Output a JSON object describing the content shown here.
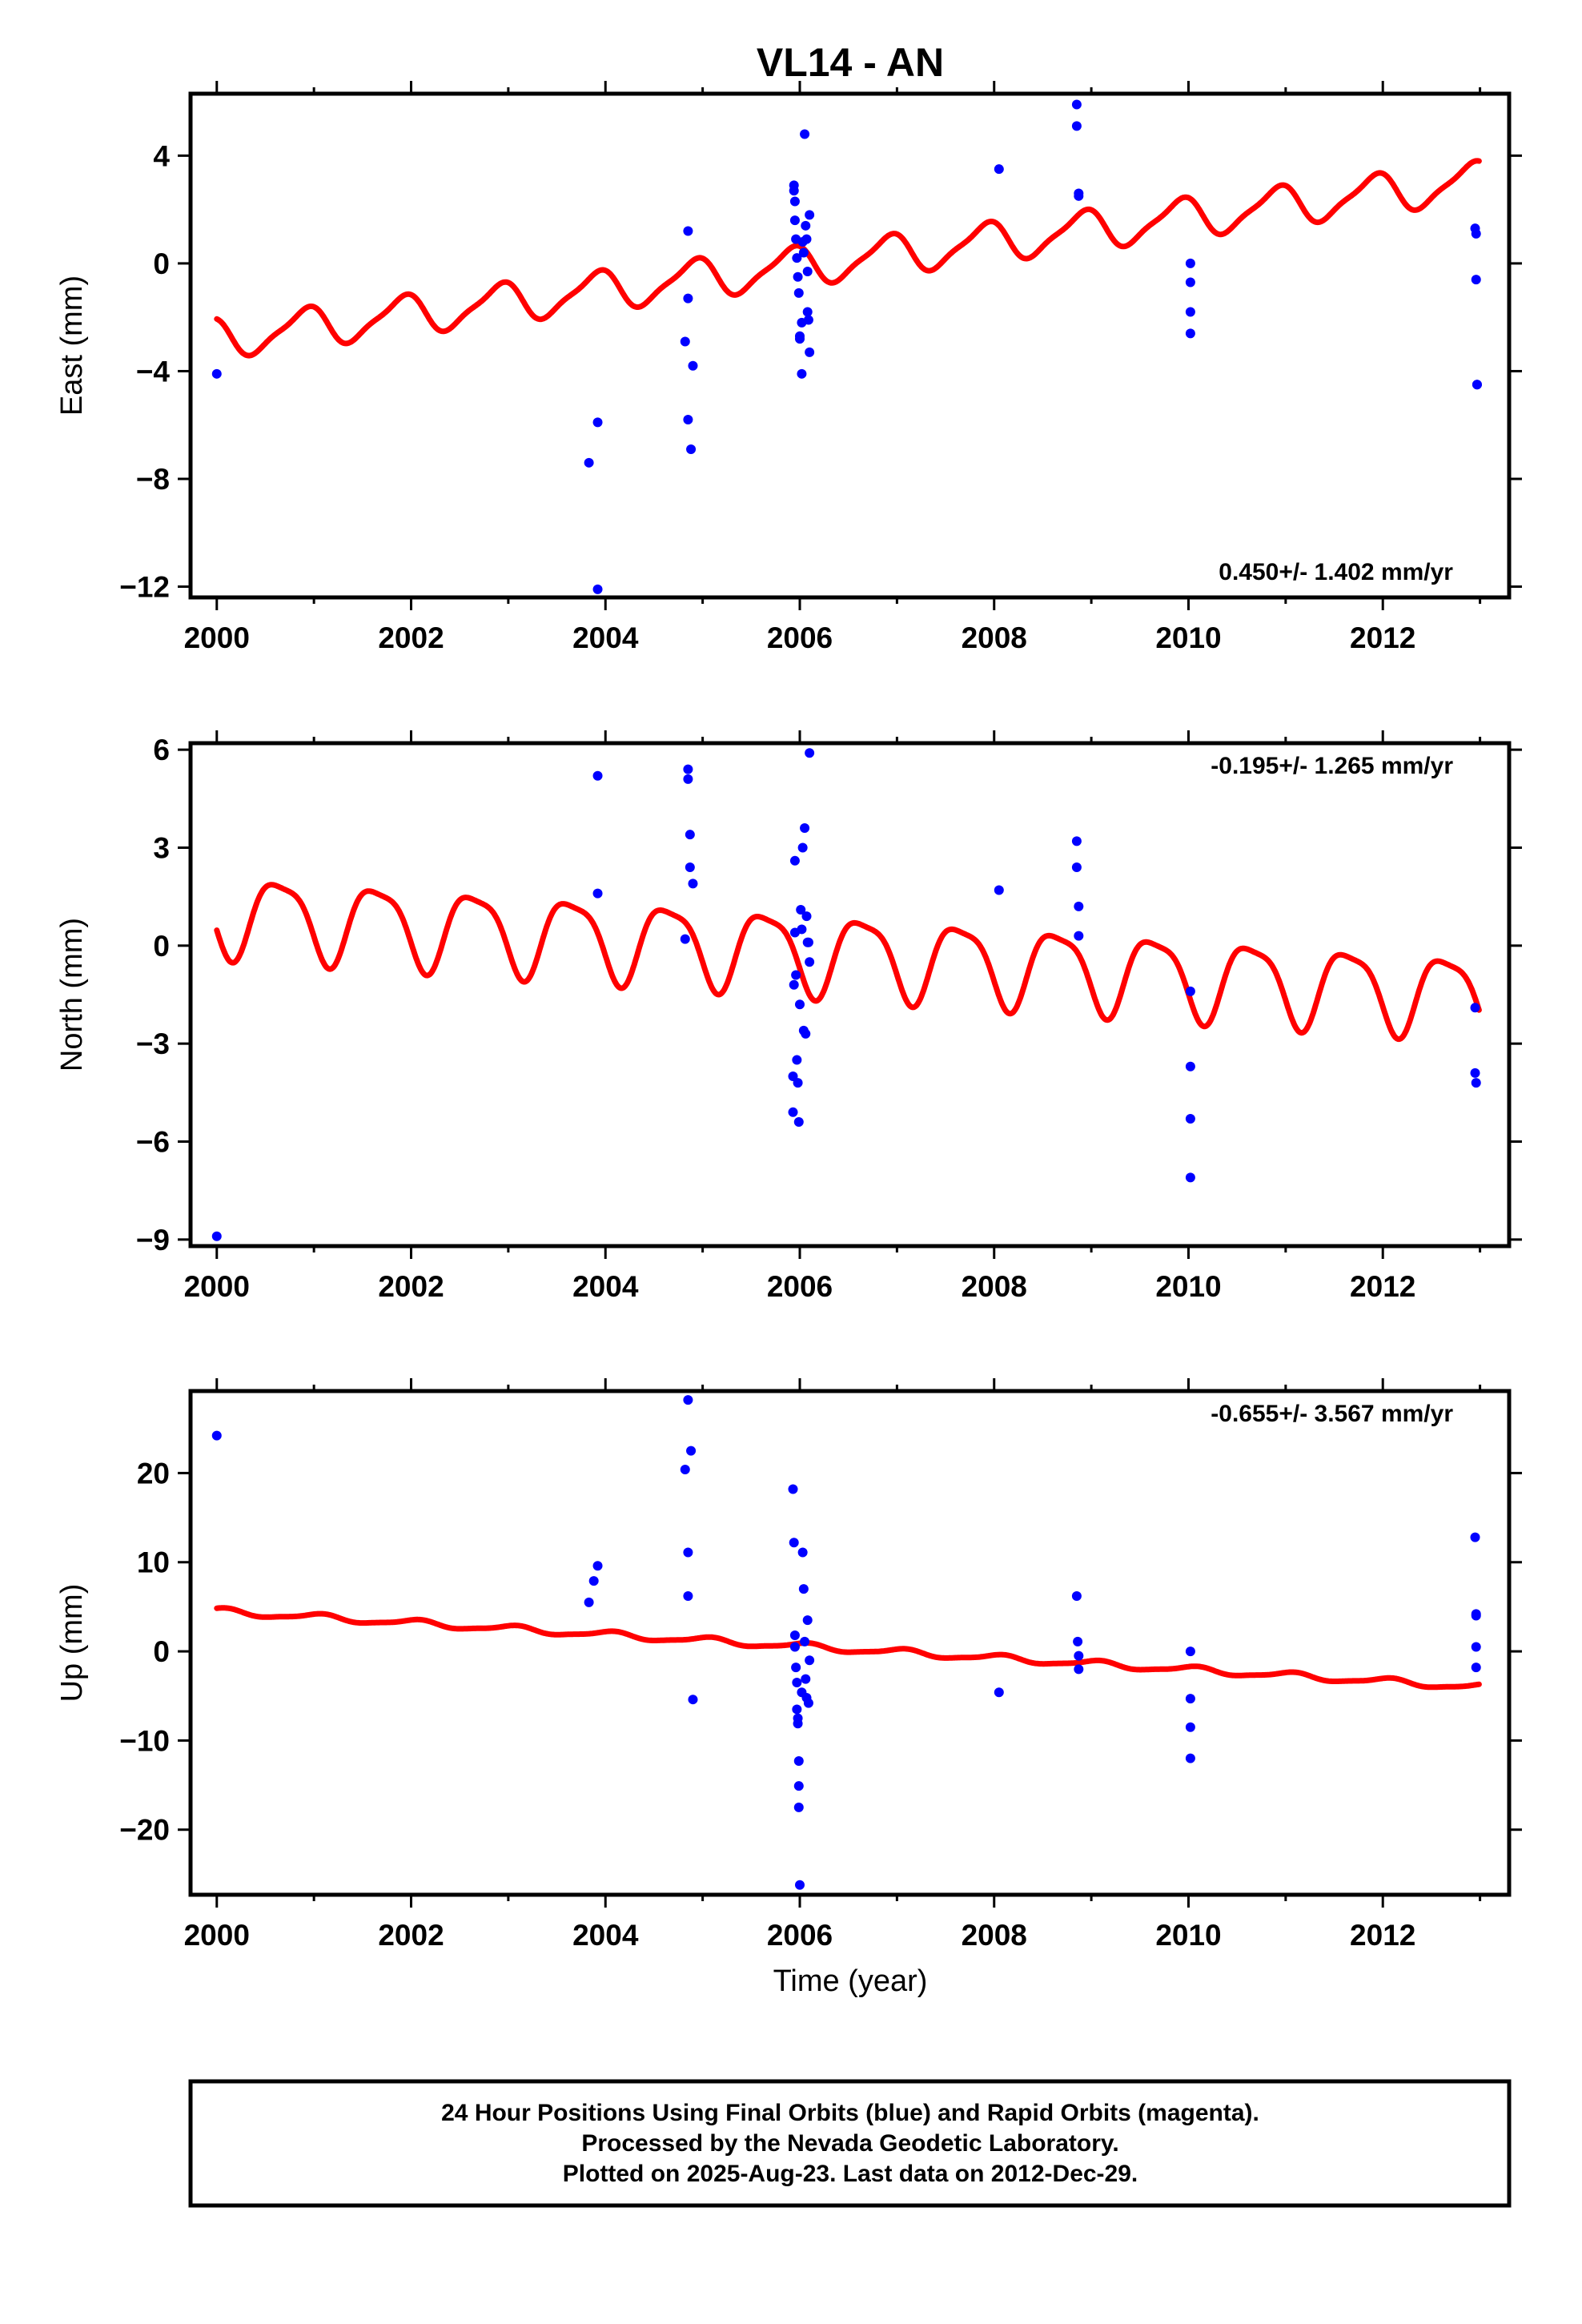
{
  "colors": {
    "final_points": "#0000ff",
    "model_fit": "#ff0000",
    "frame": "#000000"
  },
  "chart_data": {
    "type": "scatter",
    "title": "VL14 - AN",
    "xlabel": "Time (year)",
    "x_ticks": [
      "2000",
      "2002",
      "2004",
      "2006",
      "2008",
      "2010",
      "2012"
    ],
    "xlim": [
      1999.73,
      2013.3
    ],
    "panels": [
      {
        "name": "east",
        "ylabel": "East (mm)",
        "ylim": [
          -12.4,
          6.3
        ],
        "y_ticks": [
          4,
          0,
          -4,
          -8,
          -12
        ],
        "y_tick_labels": [
          "4",
          "0",
          "−4",
          "−8",
          "−12"
        ],
        "rate": "0.450+/- 1.402 mm/yr",
        "rate_position": "bottom-right",
        "fit": {
          "t0": 2000.0,
          "offset": -2.8,
          "trend": 0.45,
          "amp1": 0.7,
          "phase1": 0.35,
          "amp2": 0.18,
          "phase2": 0.1
        },
        "points": [
          [
            2000.0,
            -4.1
          ],
          [
            2003.83,
            -7.4
          ],
          [
            2003.92,
            -5.9
          ],
          [
            2003.92,
            -12.1
          ],
          [
            2004.82,
            -2.9
          ],
          [
            2004.85,
            1.2
          ],
          [
            2004.85,
            -1.3
          ],
          [
            2004.85,
            -5.8
          ],
          [
            2004.88,
            -6.9
          ],
          [
            2004.9,
            -3.8
          ],
          [
            2005.94,
            2.9
          ],
          [
            2005.94,
            2.7
          ],
          [
            2005.95,
            2.3
          ],
          [
            2005.95,
            1.6
          ],
          [
            2005.96,
            0.9
          ],
          [
            2005.97,
            0.2
          ],
          [
            2005.98,
            -0.5
          ],
          [
            2005.99,
            -1.1
          ],
          [
            2006.0,
            -2.7
          ],
          [
            2006.0,
            -2.8
          ],
          [
            2006.02,
            -4.1
          ],
          [
            2006.02,
            -2.2
          ],
          [
            2006.03,
            0.8
          ],
          [
            2006.04,
            0.4
          ],
          [
            2006.05,
            4.8
          ],
          [
            2006.06,
            1.4
          ],
          [
            2006.07,
            0.9
          ],
          [
            2006.08,
            -0.3
          ],
          [
            2006.08,
            -1.8
          ],
          [
            2006.09,
            -2.1
          ],
          [
            2006.1,
            -3.3
          ],
          [
            2006.1,
            1.8
          ],
          [
            2008.05,
            3.5
          ],
          [
            2008.85,
            5.9
          ],
          [
            2008.85,
            5.1
          ],
          [
            2008.87,
            2.6
          ],
          [
            2008.87,
            2.5
          ],
          [
            2010.02,
            0.0
          ],
          [
            2010.02,
            -0.7
          ],
          [
            2010.02,
            -1.8
          ],
          [
            2010.02,
            -2.6
          ],
          [
            2012.95,
            1.3
          ],
          [
            2012.96,
            1.1
          ],
          [
            2012.96,
            -0.6
          ],
          [
            2012.97,
            -4.5
          ],
          [
            2012.97,
            -4.5
          ]
        ]
      },
      {
        "name": "north",
        "ylabel": "North (mm)",
        "ylim": [
          -9.2,
          6.2
        ],
        "y_ticks": [
          6,
          3,
          0,
          -3,
          -6,
          -9
        ],
        "y_tick_labels": [
          "6",
          "3",
          "0",
          "−3",
          "−6",
          "−9"
        ],
        "rate": "-0.195+/- 1.265 mm/yr",
        "rate_position": "top-right",
        "fit": {
          "t0": 2000.0,
          "offset": 1.0,
          "trend": -0.195,
          "amp1": 1.2,
          "phase1": 0.6,
          "amp2": 0.3,
          "phase2": 0.2
        },
        "points": [
          [
            2000.0,
            -8.9
          ],
          [
            2003.92,
            5.2
          ],
          [
            2003.92,
            1.6
          ],
          [
            2004.82,
            0.2
          ],
          [
            2004.85,
            5.4
          ],
          [
            2004.85,
            5.1
          ],
          [
            2004.87,
            3.4
          ],
          [
            2004.87,
            2.4
          ],
          [
            2004.9,
            1.9
          ],
          [
            2005.93,
            -4.0
          ],
          [
            2005.93,
            -5.1
          ],
          [
            2005.94,
            -1.2
          ],
          [
            2005.95,
            2.6
          ],
          [
            2005.95,
            0.4
          ],
          [
            2005.96,
            -0.9
          ],
          [
            2005.97,
            -3.5
          ],
          [
            2005.98,
            -4.2
          ],
          [
            2005.99,
            -5.4
          ],
          [
            2006.0,
            -1.8
          ],
          [
            2006.01,
            1.1
          ],
          [
            2006.02,
            0.5
          ],
          [
            2006.03,
            3.0
          ],
          [
            2006.04,
            -2.6
          ],
          [
            2006.05,
            3.6
          ],
          [
            2006.06,
            -2.7
          ],
          [
            2006.07,
            0.9
          ],
          [
            2006.08,
            0.1
          ],
          [
            2006.09,
            0.1
          ],
          [
            2006.1,
            5.9
          ],
          [
            2006.1,
            -0.5
          ],
          [
            2008.05,
            1.7
          ],
          [
            2008.85,
            3.2
          ],
          [
            2008.85,
            2.4
          ],
          [
            2008.87,
            1.2
          ],
          [
            2008.87,
            0.3
          ],
          [
            2010.02,
            -1.4
          ],
          [
            2010.02,
            -3.7
          ],
          [
            2010.02,
            -5.3
          ],
          [
            2010.02,
            -7.1
          ],
          [
            2012.95,
            -1.9
          ],
          [
            2012.95,
            -3.9
          ],
          [
            2012.96,
            -4.2
          ]
        ]
      },
      {
        "name": "up",
        "ylabel": "Up (mm)",
        "ylim": [
          -27.3,
          29.2
        ],
        "y_ticks": [
          20,
          10,
          0,
          -10,
          -20
        ],
        "y_tick_labels": [
          "20",
          "10",
          "0",
          "−10",
          "−20"
        ],
        "rate": "-0.655+/- 3.567 mm/yr",
        "rate_position": "top-right",
        "fit": {
          "t0": 2000.0,
          "offset": 4.5,
          "trend": -0.655,
          "amp1": 0.35,
          "phase1": 0.2,
          "amp2": 0.1,
          "phase2": 0.0
        },
        "points": [
          [
            2000.0,
            24.2
          ],
          [
            2003.83,
            5.5
          ],
          [
            2003.88,
            7.9
          ],
          [
            2003.92,
            9.6
          ],
          [
            2004.82,
            20.4
          ],
          [
            2004.85,
            28.2
          ],
          [
            2004.85,
            11.1
          ],
          [
            2004.85,
            6.2
          ],
          [
            2004.88,
            22.5
          ],
          [
            2004.9,
            -5.4
          ],
          [
            2005.93,
            18.2
          ],
          [
            2005.94,
            12.2
          ],
          [
            2005.95,
            1.8
          ],
          [
            2005.95,
            0.5
          ],
          [
            2005.96,
            -1.8
          ],
          [
            2005.97,
            -3.5
          ],
          [
            2005.97,
            -6.5
          ],
          [
            2005.98,
            -7.5
          ],
          [
            2005.98,
            -8.1
          ],
          [
            2005.99,
            -12.3
          ],
          [
            2005.99,
            -15.1
          ],
          [
            2005.99,
            -17.5
          ],
          [
            2006.0,
            -26.2
          ],
          [
            2006.02,
            -4.6
          ],
          [
            2006.03,
            11.1
          ],
          [
            2006.04,
            7.0
          ],
          [
            2006.05,
            1.1
          ],
          [
            2006.06,
            -3.1
          ],
          [
            2006.07,
            -5.2
          ],
          [
            2006.08,
            3.5
          ],
          [
            2006.09,
            -5.8
          ],
          [
            2006.1,
            -1.0
          ],
          [
            2008.05,
            -4.6
          ],
          [
            2008.85,
            6.2
          ],
          [
            2008.86,
            1.1
          ],
          [
            2008.87,
            -0.5
          ],
          [
            2008.87,
            -2.0
          ],
          [
            2010.02,
            0.0
          ],
          [
            2010.02,
            -5.3
          ],
          [
            2010.02,
            -8.5
          ],
          [
            2010.02,
            -12.0
          ],
          [
            2012.95,
            12.8
          ],
          [
            2012.96,
            4.0
          ],
          [
            2012.96,
            4.2
          ],
          [
            2012.96,
            0.5
          ],
          [
            2012.96,
            -1.8
          ]
        ]
      }
    ]
  },
  "footer": {
    "line1": "24 Hour Positions Using Final Orbits (blue) and Rapid Orbits (magenta).",
    "line2": "Processed by the Nevada Geodetic Laboratory.",
    "line3": "Plotted on 2025-Aug-23. Last data on 2012-Dec-29."
  }
}
